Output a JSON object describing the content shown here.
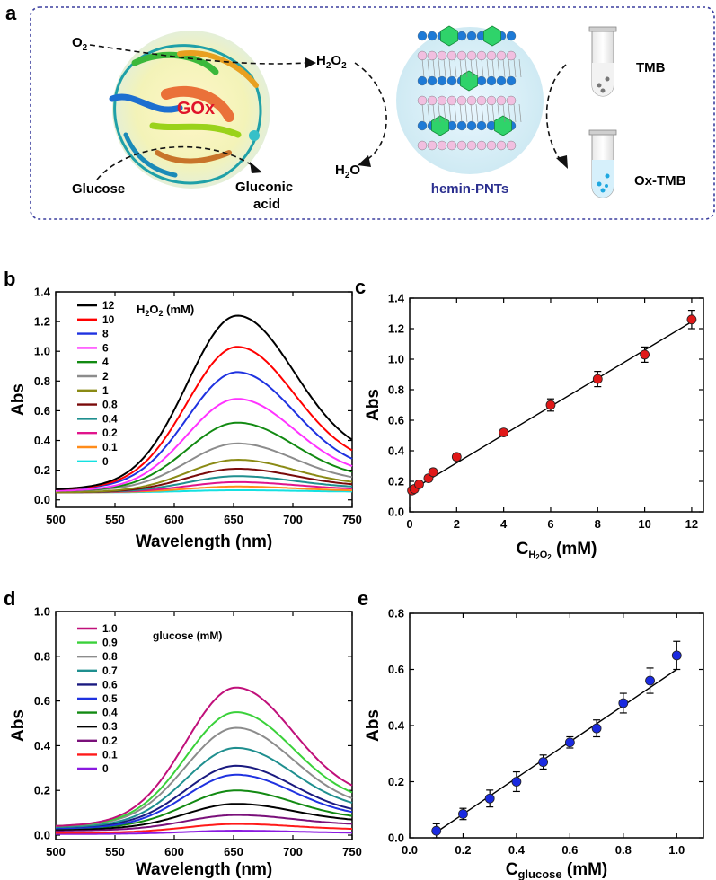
{
  "panel_letters": [
    "a",
    "b",
    "c",
    "d",
    "e"
  ],
  "scheme": {
    "o2": "O",
    "o2_sub": "2",
    "h2o2": "H",
    "h2o2_sub1": "2",
    "h2o2_o": "O",
    "h2o2_sub2": "2",
    "h2o": "H",
    "h2o_sub": "2",
    "h2o_o": "O",
    "gox": "GOx",
    "glucose": "Glucose",
    "gluconic_1": "Gluconic",
    "gluconic_2": "acid",
    "pnts": "hemin-PNTs",
    "tmb": "TMB",
    "oxtmb": "Ox-TMB",
    "colors": {
      "frame": "#3b3f9e",
      "gox": "#e0142a",
      "pnts": "#2b2f8f",
      "green": "#2fd36a",
      "blue": "#1e7ad6",
      "pink": "#f1bfe0"
    }
  },
  "chart_data": [
    {
      "id": "b",
      "type": "line",
      "title": "",
      "legend_title": "H2O2 (mM)",
      "xlabel": "Wavelength (nm)",
      "ylabel": "Abs",
      "xlim": [
        500,
        750
      ],
      "ylim": [
        -0.05,
        1.4
      ],
      "xticks": [
        500,
        550,
        600,
        650,
        700,
        750
      ],
      "yticks": [
        0.0,
        0.2,
        0.4,
        0.6,
        0.8,
        1.0,
        1.2,
        1.4
      ],
      "ytick_labels": [
        "0.0",
        "0.2",
        "0.4",
        "0.6",
        "0.8",
        "1.0",
        "1.2",
        "1.4"
      ],
      "peak_x": 653,
      "series": [
        {
          "name": "12",
          "color": "#000000",
          "base": 0.07,
          "peak": 1.24,
          "tail": 0.28
        },
        {
          "name": "10",
          "color": "#ff0000",
          "base": 0.07,
          "peak": 1.03,
          "tail": 0.23
        },
        {
          "name": "8",
          "color": "#1f32e0",
          "base": 0.07,
          "peak": 0.86,
          "tail": 0.19
        },
        {
          "name": "6",
          "color": "#ff33ff",
          "base": 0.06,
          "peak": 0.68,
          "tail": 0.16
        },
        {
          "name": "4",
          "color": "#128a12",
          "base": 0.06,
          "peak": 0.52,
          "tail": 0.14
        },
        {
          "name": "2",
          "color": "#8c8c8c",
          "base": 0.06,
          "peak": 0.38,
          "tail": 0.12
        },
        {
          "name": "1",
          "color": "#8a8a14",
          "base": 0.05,
          "peak": 0.27,
          "tail": 0.1
        },
        {
          "name": "0.8",
          "color": "#7a0a0a",
          "base": 0.05,
          "peak": 0.21,
          "tail": 0.09
        },
        {
          "name": "0.4",
          "color": "#1f8f8f",
          "base": 0.05,
          "peak": 0.16,
          "tail": 0.08
        },
        {
          "name": "0.2",
          "color": "#e0148c",
          "base": 0.05,
          "peak": 0.12,
          "tail": 0.07
        },
        {
          "name": "0.1",
          "color": "#ff8c1a",
          "base": 0.05,
          "peak": 0.09,
          "tail": 0.06
        },
        {
          "name": "0",
          "color": "#14e1e1",
          "base": 0.05,
          "peak": 0.065,
          "tail": 0.055
        }
      ]
    },
    {
      "id": "c",
      "type": "scatter",
      "xlabel": "C",
      "xlabel_sub": "H2O2",
      "xlabel_unit": " (mM)",
      "ylabel": "Abs",
      "xlim": [
        0,
        12.5
      ],
      "ylim": [
        0,
        1.4
      ],
      "xticks": [
        0,
        2,
        4,
        6,
        8,
        10,
        12
      ],
      "yticks": [
        0.0,
        0.2,
        0.4,
        0.6,
        0.8,
        1.0,
        1.2,
        1.4
      ],
      "ytick_labels": [
        "0.0",
        "0.2",
        "0.4",
        "0.6",
        "0.8",
        "1.0",
        "1.2",
        "1.4"
      ],
      "marker_color": "#e01818",
      "fit": [
        [
          0.1,
          0.145
        ],
        [
          12,
          1.245
        ]
      ],
      "points": [
        {
          "x": 0.1,
          "y": 0.14,
          "err": 0.02
        },
        {
          "x": 0.2,
          "y": 0.15,
          "err": 0.02
        },
        {
          "x": 0.4,
          "y": 0.18,
          "err": 0.02
        },
        {
          "x": 0.8,
          "y": 0.22,
          "err": 0.02
        },
        {
          "x": 1,
          "y": 0.26,
          "err": 0.02
        },
        {
          "x": 2,
          "y": 0.36,
          "err": 0.02
        },
        {
          "x": 4,
          "y": 0.52,
          "err": 0.02
        },
        {
          "x": 6,
          "y": 0.7,
          "err": 0.04
        },
        {
          "x": 8,
          "y": 0.87,
          "err": 0.05
        },
        {
          "x": 10,
          "y": 1.03,
          "err": 0.05
        },
        {
          "x": 12,
          "y": 1.26,
          "err": 0.06
        }
      ]
    },
    {
      "id": "d",
      "type": "line",
      "legend_title": "glucose (mM)",
      "xlabel": "Wavelength (nm)",
      "ylabel": "Abs",
      "xlim": [
        500,
        750
      ],
      "ylim": [
        -0.02,
        1.0
      ],
      "xticks": [
        500,
        550,
        600,
        650,
        700,
        750
      ],
      "yticks": [
        0.0,
        0.2,
        0.4,
        0.6,
        0.8,
        1.0
      ],
      "ytick_labels": [
        "0.0",
        "0.2",
        "0.4",
        "0.6",
        "0.8",
        "1.0"
      ],
      "peak_x": 652,
      "series": [
        {
          "name": "1.0",
          "color": "#c0107a",
          "base": 0.04,
          "peak": 0.66,
          "tail": 0.16
        },
        {
          "name": "0.9",
          "color": "#3ad13a",
          "base": 0.04,
          "peak": 0.55,
          "tail": 0.14
        },
        {
          "name": "0.8",
          "color": "#8c8c8c",
          "base": 0.04,
          "peak": 0.48,
          "tail": 0.12
        },
        {
          "name": "0.7",
          "color": "#1f8f8f",
          "base": 0.035,
          "peak": 0.39,
          "tail": 0.11
        },
        {
          "name": "0.6",
          "color": "#1a1a80",
          "base": 0.035,
          "peak": 0.31,
          "tail": 0.09
        },
        {
          "name": "0.5",
          "color": "#1f32e0",
          "base": 0.03,
          "peak": 0.27,
          "tail": 0.08
        },
        {
          "name": "0.4",
          "color": "#128a12",
          "base": 0.03,
          "peak": 0.2,
          "tail": 0.07
        },
        {
          "name": "0.3",
          "color": "#000000",
          "base": 0.025,
          "peak": 0.14,
          "tail": 0.06
        },
        {
          "name": "0.2",
          "color": "#7a107a",
          "base": 0.02,
          "peak": 0.09,
          "tail": 0.045
        },
        {
          "name": "0.1",
          "color": "#ff1a1a",
          "base": 0.01,
          "peak": 0.05,
          "tail": 0.025
        },
        {
          "name": "0",
          "color": "#8a1ae0",
          "base": 0.005,
          "peak": 0.02,
          "tail": 0.01
        }
      ]
    },
    {
      "id": "e",
      "type": "scatter",
      "xlabel": "C",
      "xlabel_sub": "glucose",
      "xlabel_unit": " (mM)",
      "ylabel": "Abs",
      "xlim": [
        0,
        1.1
      ],
      "ylim": [
        0,
        0.8
      ],
      "xticks": [
        0.0,
        0.2,
        0.4,
        0.6,
        0.8,
        1.0
      ],
      "xtick_labels": [
        "0.0",
        "0.2",
        "0.4",
        "0.6",
        "0.8",
        "1.0"
      ],
      "yticks": [
        0.0,
        0.2,
        0.4,
        0.6,
        0.8
      ],
      "ytick_labels": [
        "0.0",
        "0.2",
        "0.4",
        "0.6",
        "0.8"
      ],
      "marker_color": "#1a2ae0",
      "fit": [
        [
          0.1,
          0.02
        ],
        [
          1.0,
          0.6
        ]
      ],
      "points": [
        {
          "x": 0.1,
          "y": 0.025,
          "err": 0.025
        },
        {
          "x": 0.2,
          "y": 0.085,
          "err": 0.02
        },
        {
          "x": 0.3,
          "y": 0.14,
          "err": 0.03
        },
        {
          "x": 0.4,
          "y": 0.2,
          "err": 0.035
        },
        {
          "x": 0.5,
          "y": 0.27,
          "err": 0.025
        },
        {
          "x": 0.6,
          "y": 0.34,
          "err": 0.02
        },
        {
          "x": 0.7,
          "y": 0.39,
          "err": 0.03
        },
        {
          "x": 0.8,
          "y": 0.48,
          "err": 0.035
        },
        {
          "x": 0.9,
          "y": 0.56,
          "err": 0.045
        },
        {
          "x": 1.0,
          "y": 0.65,
          "err": 0.05
        }
      ]
    }
  ]
}
